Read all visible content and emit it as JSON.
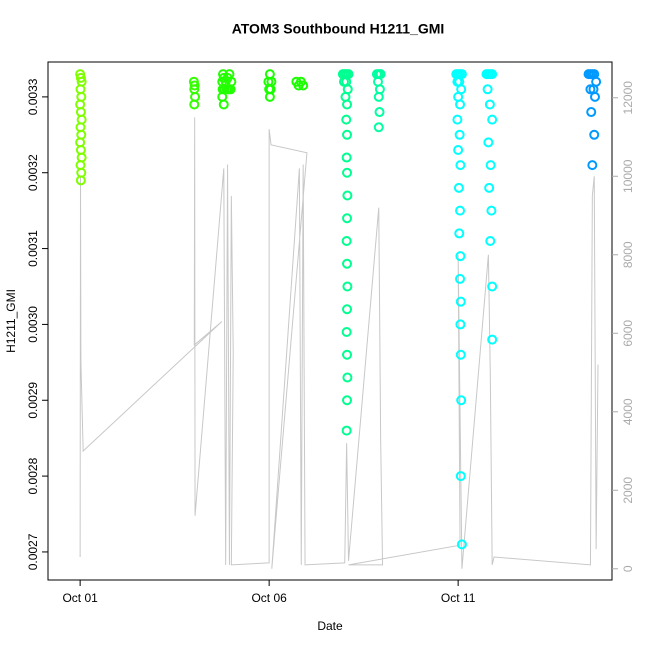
{
  "chart_data": {
    "type": "scatter",
    "title": "ATOM3 Southbound H1211_GMI",
    "x_label": "Date",
    "y_label": "H1211_GMI",
    "xlim": [
      -0.85,
      14.07
    ],
    "xticks": [
      {
        "value": 0,
        "label": "Oct 01"
      },
      {
        "value": 5,
        "label": "Oct 06"
      },
      {
        "value": 10,
        "label": "Oct 11"
      }
    ],
    "ylim": [
      0.002663,
      0.003346
    ],
    "yticks": [
      0.0027,
      0.0028,
      0.0029,
      {
        "value": 0.003,
        "label": "0.0030"
      },
      0.0031,
      0.0032,
      0.0033
    ],
    "y2lim": [
      -286,
      12911
    ],
    "y2ticks": [
      0,
      2000,
      4000,
      6000,
      8000,
      10000,
      12000
    ],
    "series": [
      {
        "color": "#80ff00",
        "x": [
          0,
          0.02,
          0.04,
          0.01,
          0.03,
          0,
          0.02,
          0.04,
          0.01,
          0.03,
          0,
          0.02,
          0.04,
          0.01,
          0.03,
          0.02
        ],
        "values": [
          0.00333,
          0.003325,
          0.00332,
          0.00331,
          0.0033,
          0.00329,
          0.00328,
          0.00327,
          0.00326,
          0.00325,
          0.00324,
          0.00323,
          0.00322,
          0.00321,
          0.0032,
          0.00319
        ]
      },
      {
        "color": "#33ff00",
        "x": [
          3.01,
          3.03,
          3.02,
          3.04,
          3.02
        ],
        "values": [
          0.00332,
          0.003315,
          0.00331,
          0.0033,
          0.00329
        ]
      },
      {
        "color": "#22ff00",
        "x": [
          3.76,
          3.78,
          3.8,
          3.85,
          3.9,
          3.95,
          4.0,
          3.77,
          3.82,
          3.88,
          3.93,
          3.98,
          3.76,
          3.8
        ],
        "values": [
          0.00332,
          0.00333,
          0.003325,
          0.00332,
          0.003325,
          0.00333,
          0.00332,
          0.00331,
          0.00331,
          0.00331,
          0.00331,
          0.00331,
          0.0033,
          0.00329
        ]
      },
      {
        "color": "#1aff00",
        "x": [
          4.98,
          5.02,
          5.06,
          5.0,
          5.04,
          5.02,
          5.72,
          5.78,
          5.84,
          5.9
        ],
        "values": [
          0.00332,
          0.00333,
          0.00332,
          0.00331,
          0.00331,
          0.0033,
          0.00332,
          0.003315,
          0.00332,
          0.003315
        ]
      },
      {
        "color": "#00ff90",
        "x": [
          6.95,
          7.0,
          7.05,
          7.1,
          6.98,
          7.04,
          7.08,
          7.02,
          7.06,
          7.04,
          7.06,
          7.05,
          7.06,
          7.07,
          7.06,
          7.05,
          7.06,
          7.07,
          7.06,
          7.05,
          7.06,
          7.07,
          7.06,
          7.05
        ],
        "values": [
          0.00333,
          0.00333,
          0.00333,
          0.00333,
          0.00332,
          0.00332,
          0.00331,
          0.0033,
          0.00329,
          0.00327,
          0.00325,
          0.00322,
          0.0032,
          0.00317,
          0.00314,
          0.00311,
          0.00308,
          0.00305,
          0.00302,
          0.00299,
          0.00296,
          0.00293,
          0.0029,
          0.00286
        ]
      },
      {
        "color": "#00ffa0",
        "x": [
          7.85,
          7.9,
          7.95,
          7.88,
          7.93,
          7.9,
          7.92,
          7.9
        ],
        "values": [
          0.00333,
          0.00333,
          0.00333,
          0.00332,
          0.00331,
          0.0033,
          0.00328,
          0.00326
        ]
      },
      {
        "color": "#00ffff",
        "x": [
          9.95,
          10.0,
          10.05,
          10.1,
          9.98,
          10.03,
          10.08,
          10.0,
          10.05,
          9.98,
          10.04,
          10.0,
          10.06,
          10.02,
          10.05,
          10.03,
          10.06,
          10.05,
          10.07,
          10.06,
          10.07,
          10.08,
          10.07,
          10.1,
          10.75,
          10.8,
          10.85,
          10.9,
          10.78,
          10.84,
          10.9,
          10.8,
          10.86,
          10.82,
          10.88,
          10.85,
          10.9,
          10.9
        ],
        "values": [
          0.00333,
          0.00333,
          0.00333,
          0.00333,
          0.00332,
          0.00332,
          0.00331,
          0.0033,
          0.00329,
          0.00327,
          0.00325,
          0.00323,
          0.00321,
          0.00318,
          0.00315,
          0.00312,
          0.00309,
          0.00306,
          0.00303,
          0.003,
          0.00296,
          0.0029,
          0.0028,
          0.00271,
          0.00333,
          0.00333,
          0.00333,
          0.00333,
          0.00331,
          0.00329,
          0.00327,
          0.00324,
          0.00321,
          0.00318,
          0.00315,
          0.00311,
          0.00305,
          0.00298
        ]
      },
      {
        "color": "#0099ff",
        "x": [
          13.45,
          13.5,
          13.55,
          13.6,
          13.65,
          13.5,
          13.58,
          13.62,
          13.52,
          13.6,
          13.55
        ],
        "values": [
          0.00333,
          0.00333,
          0.00333,
          0.00333,
          0.00332,
          0.00331,
          0.00331,
          0.0033,
          0.00328,
          0.00325,
          0.00321
        ]
      }
    ],
    "line": {
      "axis": "y2",
      "color": "#c8c8c8",
      "x": [
        0,
        0.01,
        0.02,
        0.08,
        3.75,
        3.02,
        3.03,
        3.04,
        3.8,
        3.85,
        3.9,
        3.95,
        4.0,
        4.05,
        4.0,
        5.0,
        5.0,
        5.05,
        6.0,
        5.07,
        5.8,
        5.85,
        5.9,
        5.95,
        7.0,
        7.05,
        7.1,
        7.9,
        7.95,
        8.0,
        7.1,
        10.05,
        10.0,
        10.1,
        10.8,
        10.85,
        10.9,
        10.95,
        13.5,
        13.55,
        13.6,
        13.65,
        13.7
      ],
      "values": [
        300,
        10000,
        5300,
        3000,
        6300,
        5700,
        11500,
        1350,
        10200,
        100,
        10300,
        100,
        9500,
        5500,
        100,
        150,
        11200,
        10800,
        10600,
        0,
        10200,
        100,
        10300,
        100,
        150,
        3200,
        200,
        9200,
        3300,
        100,
        100,
        600,
        8000,
        0,
        8000,
        5000,
        100,
        300,
        100,
        9500,
        10000,
        500,
        5200
      ]
    }
  }
}
